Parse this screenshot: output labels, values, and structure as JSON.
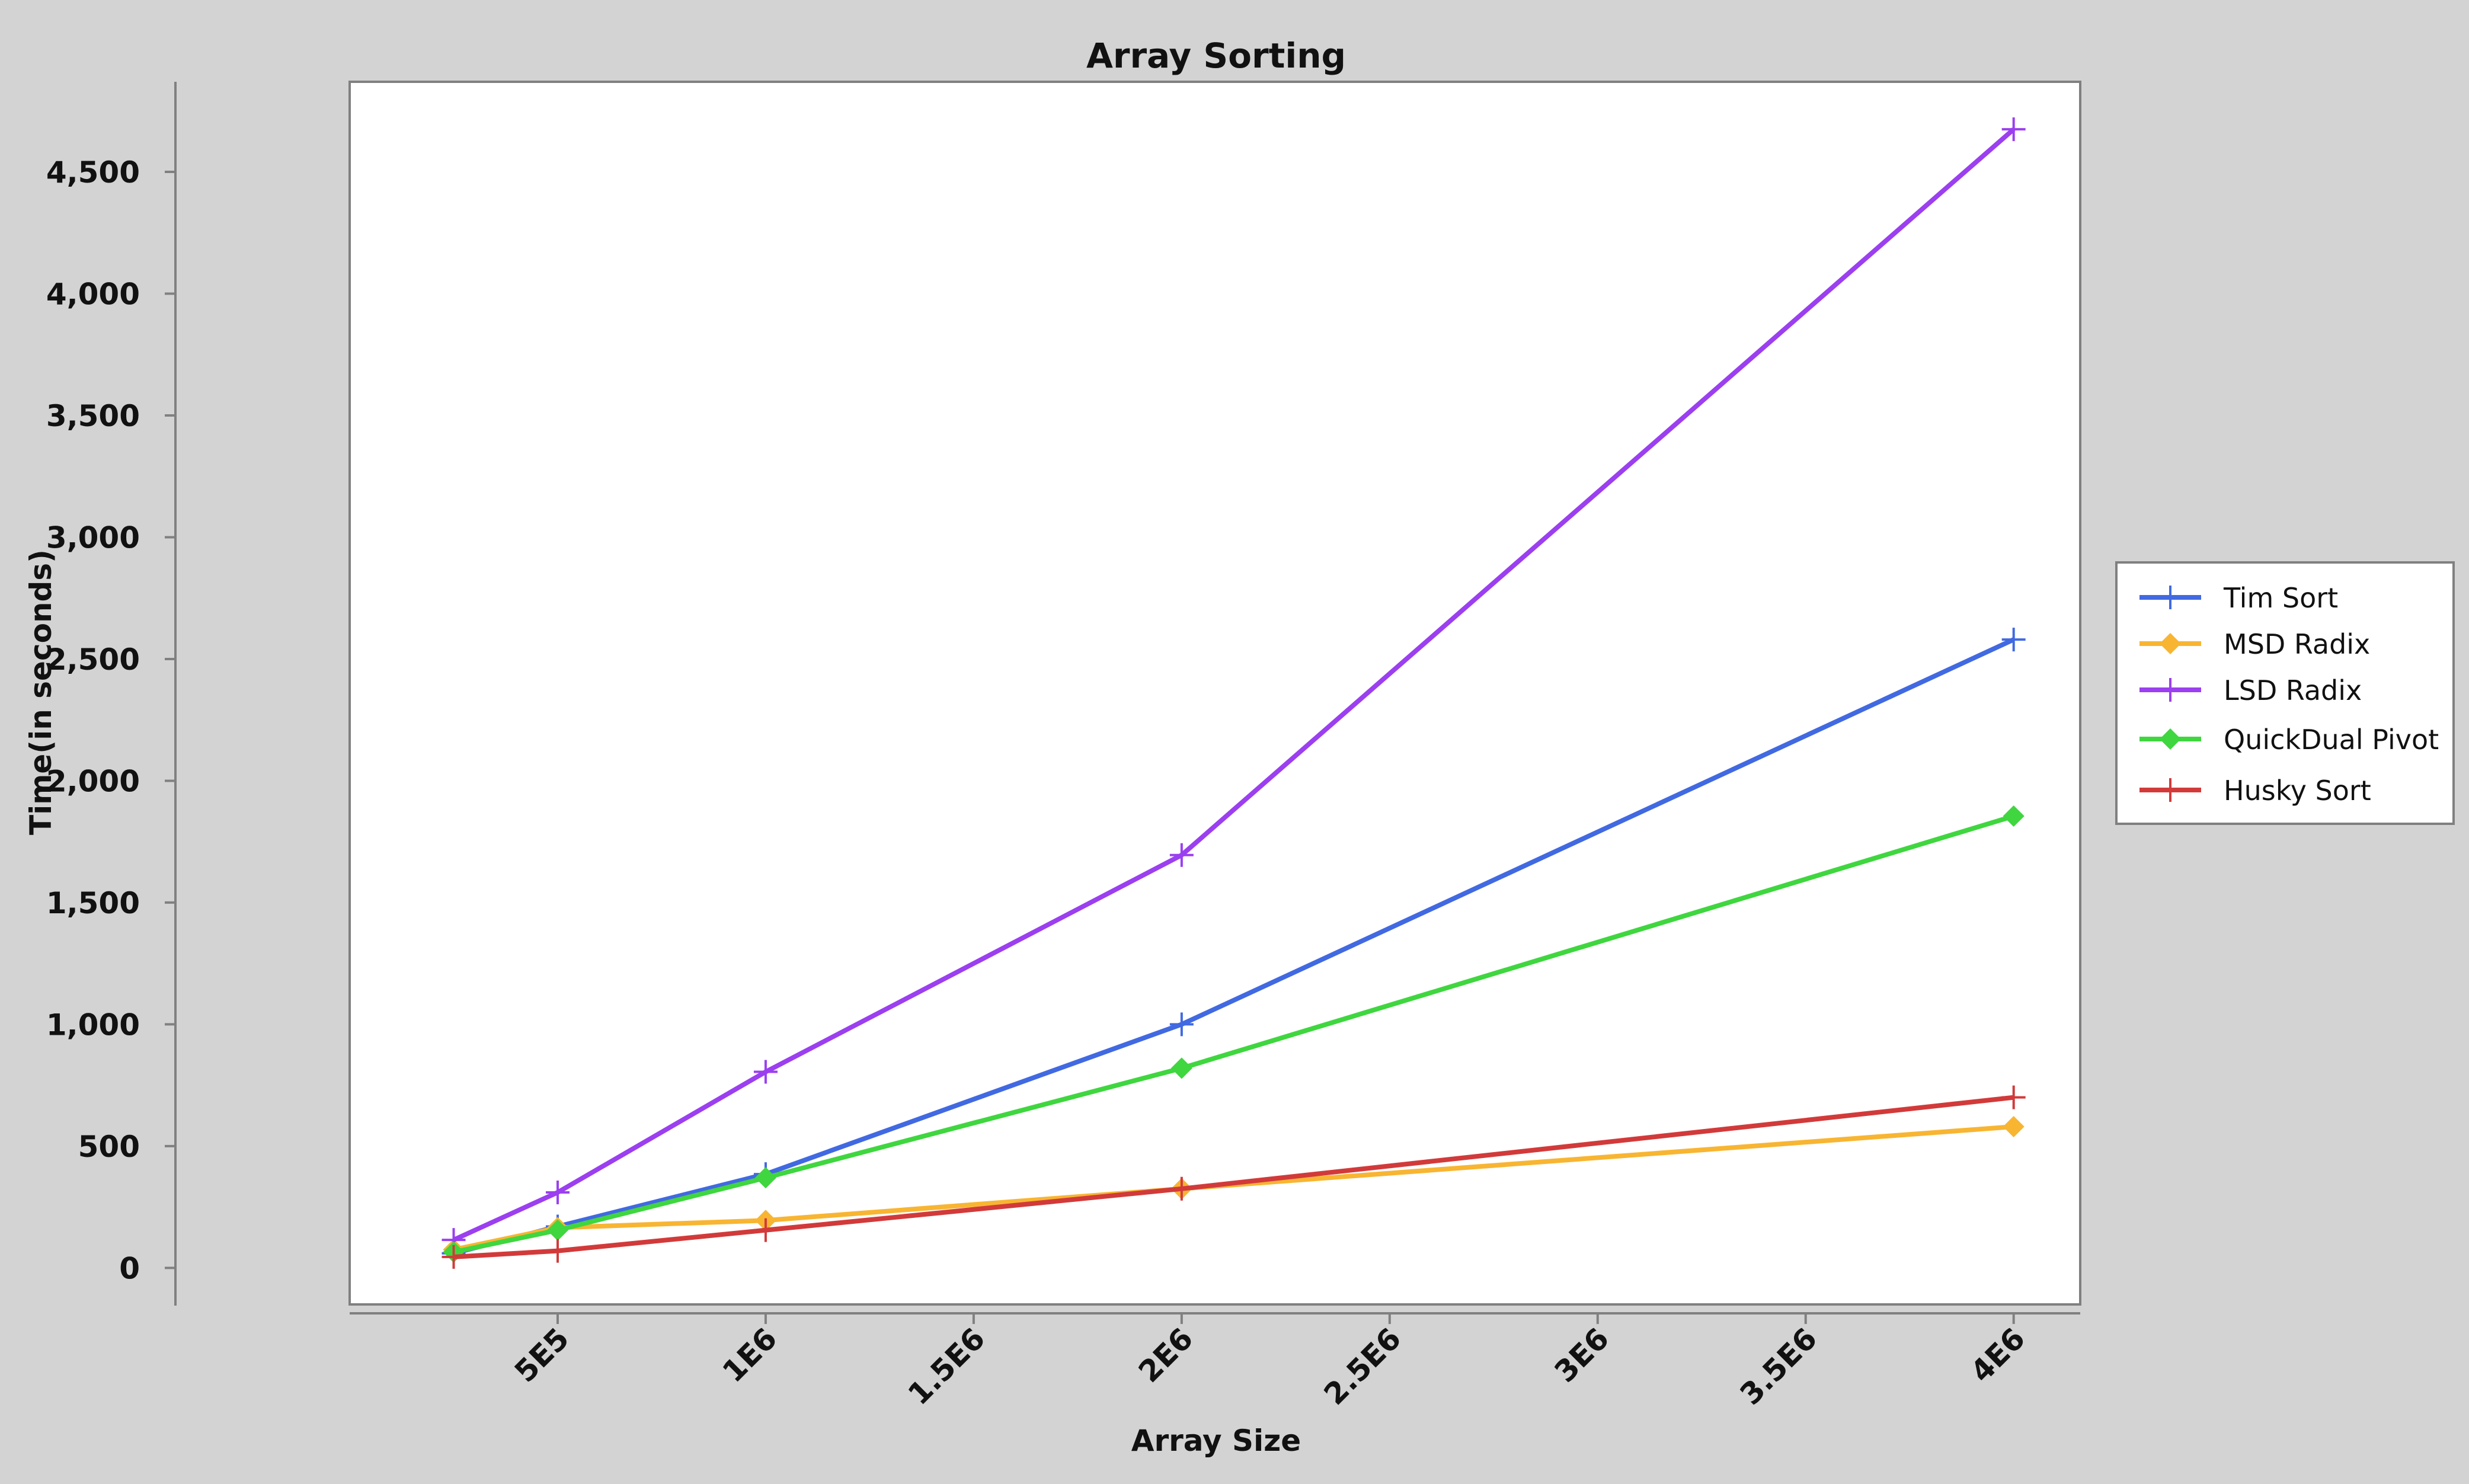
{
  "chart_data": {
    "type": "line",
    "title": "Array Sorting",
    "xlabel": "Array Size",
    "ylabel": "Time(in seconds)",
    "x": [
      250000,
      500000,
      1000000,
      2000000,
      4000000
    ],
    "xlim": [
      0,
      4160000
    ],
    "ylim": [
      -150,
      4870
    ],
    "x_ticks": [
      {
        "value": 500000,
        "label": "5E5"
      },
      {
        "value": 1000000,
        "label": "1E6"
      },
      {
        "value": 1500000,
        "label": "1.5E6"
      },
      {
        "value": 2000000,
        "label": "2E6"
      },
      {
        "value": 2500000,
        "label": "2.5E6"
      },
      {
        "value": 3000000,
        "label": "3E6"
      },
      {
        "value": 3500000,
        "label": "3.5E6"
      },
      {
        "value": 4000000,
        "label": "4E6"
      }
    ],
    "y_ticks": [
      {
        "value": 0,
        "label": "0"
      },
      {
        "value": 500,
        "label": "500"
      },
      {
        "value": 1000,
        "label": "1,000"
      },
      {
        "value": 1500,
        "label": "1,500"
      },
      {
        "value": 2000,
        "label": "2,000"
      },
      {
        "value": 2500,
        "label": "2,500"
      },
      {
        "value": 3000,
        "label": "3,000"
      },
      {
        "value": 3500,
        "label": "3,500"
      },
      {
        "value": 4000,
        "label": "4,000"
      },
      {
        "value": 4500,
        "label": "4,500"
      }
    ],
    "grid": false,
    "legend_position": "right",
    "series": [
      {
        "name": "Tim Sort",
        "color": "#4169e1",
        "marker": "plus",
        "values": [
          60,
          170,
          385,
          1000,
          2580
        ]
      },
      {
        "name": "MSD Radix",
        "color": "#f8b532",
        "marker": "diamond",
        "values": [
          75,
          165,
          195,
          325,
          580
        ]
      },
      {
        "name": "LSD Radix",
        "color": "#9b3ff0",
        "marker": "plus",
        "values": [
          115,
          310,
          805,
          1695,
          4675
        ]
      },
      {
        "name": "QuickDual Pivot",
        "color": "#3fd63f",
        "marker": "diamond",
        "values": [
          65,
          155,
          370,
          820,
          1855
        ]
      },
      {
        "name": "Husky Sort",
        "color": "#d23a3a",
        "marker": "plus",
        "values": [
          45,
          70,
          155,
          325,
          700
        ]
      }
    ]
  }
}
